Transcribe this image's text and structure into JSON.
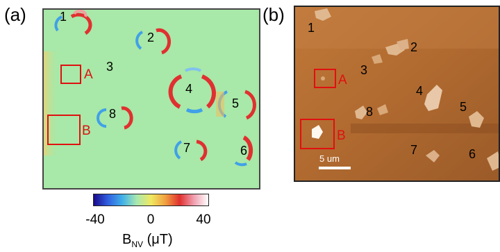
{
  "panels": {
    "a": {
      "letter": "(a)",
      "flakes": [
        {
          "id": "1"
        },
        {
          "id": "2"
        },
        {
          "id": "3"
        },
        {
          "id": "4"
        },
        {
          "id": "5"
        },
        {
          "id": "6"
        },
        {
          "id": "7"
        },
        {
          "id": "8"
        }
      ],
      "boxes": [
        {
          "label": "A"
        },
        {
          "label": "B"
        }
      ]
    },
    "b": {
      "letter": "(b)",
      "flakes": [
        {
          "id": "1"
        },
        {
          "id": "2"
        },
        {
          "id": "3"
        },
        {
          "id": "4"
        },
        {
          "id": "5"
        },
        {
          "id": "6"
        },
        {
          "id": "7"
        },
        {
          "id": "8"
        }
      ],
      "boxes": [
        {
          "label": "A"
        },
        {
          "label": "B"
        }
      ],
      "scale_bar": "5 um"
    }
  },
  "colorbar": {
    "ticks": [
      "-40",
      "0",
      "40"
    ],
    "title_main": "B",
    "title_sub": "NV",
    "title_unit": " (μT)",
    "colors": [
      "#1a0a8c",
      "#3060e0",
      "#40b0e8",
      "#a8e8b0",
      "#f0e860",
      "#f0a040",
      "#e03030",
      "#f0a0b0",
      "#ffffff"
    ]
  },
  "colors": {
    "map_bg": "#a8e8a8",
    "afm_bg": "#b06a30",
    "box": "#e01010"
  }
}
